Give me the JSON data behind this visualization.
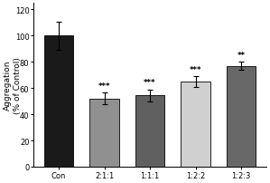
{
  "categories": [
    "Con",
    "2:1:1",
    "1:1:1",
    "1:2:2",
    "1:2:3"
  ],
  "values": [
    100.0,
    52.0,
    54.5,
    65.0,
    77.0
  ],
  "errors": [
    10.5,
    4.5,
    4.5,
    4.0,
    3.0
  ],
  "bar_colors": [
    "#1a1a1a",
    "#909090",
    "#606060",
    "#d0d0d0",
    "#686868"
  ],
  "bar_edgecolors": [
    "#000000",
    "#000000",
    "#000000",
    "#000000",
    "#000000"
  ],
  "significance": [
    "",
    "***",
    "***",
    "***",
    "**"
  ],
  "ylabel_line1": "Aggregation",
  "ylabel_line2": "(% of Control)",
  "ylim": [
    0,
    125
  ],
  "yticks": [
    0,
    20,
    40,
    60,
    80,
    100,
    120
  ],
  "background_color": "#ffffff",
  "bar_width": 0.65,
  "sig_fontsize": 6,
  "ylabel_fontsize": 6.5,
  "tick_fontsize": 6,
  "capsize": 2.5,
  "elinewidth": 0.8,
  "bar_linewidth": 0.6
}
